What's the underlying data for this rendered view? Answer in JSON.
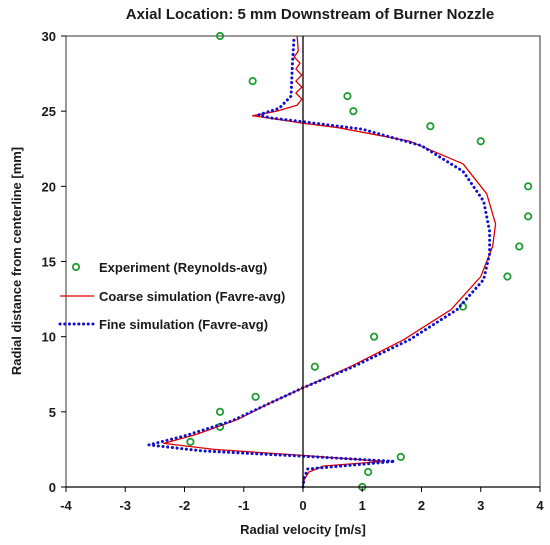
{
  "chart_data": {
    "type": "scatter",
    "title": "Axial Location: 5 mm Downstream of Burner Nozzle",
    "xlabel": "Radial velocity [m/s]",
    "ylabel": "Radial distance from centerline [mm]",
    "xlim": [
      -4,
      4
    ],
    "ylim": [
      0,
      30
    ],
    "xticks": [
      -4,
      -3,
      -2,
      -1,
      0,
      1,
      2,
      3,
      4
    ],
    "yticks": [
      0,
      5,
      10,
      15,
      20,
      25,
      30
    ],
    "grid": false,
    "legend_position": "middle-left",
    "series": [
      {
        "name": "Experiment (Reynolds-avg)",
        "kind": "scatter",
        "color": "#1e9e32",
        "points": [
          {
            "x": 1.0,
            "y": 0.0
          },
          {
            "x": 1.1,
            "y": 1.0
          },
          {
            "x": 1.65,
            "y": 2.0
          },
          {
            "x": -1.9,
            "y": 3.0
          },
          {
            "x": -1.4,
            "y": 4.0
          },
          {
            "x": -1.4,
            "y": 5.0
          },
          {
            "x": -0.8,
            "y": 6.0
          },
          {
            "x": 0.2,
            "y": 8.0
          },
          {
            "x": 1.2,
            "y": 10.0
          },
          {
            "x": 2.7,
            "y": 12.0
          },
          {
            "x": 3.45,
            "y": 14.0
          },
          {
            "x": 3.65,
            "y": 16.0
          },
          {
            "x": 3.8,
            "y": 18.0
          },
          {
            "x": 3.8,
            "y": 20.0
          },
          {
            "x": 3.0,
            "y": 23.0
          },
          {
            "x": 2.15,
            "y": 24.0
          },
          {
            "x": 0.85,
            "y": 25.0
          },
          {
            "x": 0.75,
            "y": 26.0
          },
          {
            "x": -0.85,
            "y": 27.0
          },
          {
            "x": -1.4,
            "y": 30.0
          }
        ]
      },
      {
        "name": "Coarse simulation (Favre-avg)",
        "kind": "line",
        "dash": "solid",
        "color": "#e00000",
        "points": [
          {
            "x": 0.0,
            "y": 0.0
          },
          {
            "x": 0.02,
            "y": 0.5
          },
          {
            "x": 0.1,
            "y": 1.0
          },
          {
            "x": 0.35,
            "y": 1.4
          },
          {
            "x": 1.35,
            "y": 1.7
          },
          {
            "x": 0.0,
            "y": 2.1
          },
          {
            "x": -1.5,
            "y": 2.5
          },
          {
            "x": -2.35,
            "y": 2.9
          },
          {
            "x": -1.8,
            "y": 3.5
          },
          {
            "x": -1.1,
            "y": 4.5
          },
          {
            "x": -0.6,
            "y": 5.5
          },
          {
            "x": 0.0,
            "y": 6.6
          },
          {
            "x": 0.8,
            "y": 8.0
          },
          {
            "x": 1.7,
            "y": 9.8
          },
          {
            "x": 2.5,
            "y": 11.8
          },
          {
            "x": 3.0,
            "y": 14.0
          },
          {
            "x": 3.2,
            "y": 16.0
          },
          {
            "x": 3.25,
            "y": 17.5
          },
          {
            "x": 3.1,
            "y": 19.5
          },
          {
            "x": 2.7,
            "y": 21.5
          },
          {
            "x": 1.8,
            "y": 23.0
          },
          {
            "x": 0.6,
            "y": 23.9
          },
          {
            "x": 0.0,
            "y": 24.2
          },
          {
            "x": -0.5,
            "y": 24.5
          },
          {
            "x": -0.85,
            "y": 24.7
          },
          {
            "x": -0.45,
            "y": 25.0
          },
          {
            "x": -0.1,
            "y": 25.4
          },
          {
            "x": -0.02,
            "y": 25.8
          },
          {
            "x": -0.12,
            "y": 26.2
          },
          {
            "x": -0.02,
            "y": 26.6
          },
          {
            "x": -0.12,
            "y": 27.0
          },
          {
            "x": -0.02,
            "y": 27.4
          },
          {
            "x": -0.12,
            "y": 27.8
          },
          {
            "x": -0.05,
            "y": 28.2
          },
          {
            "x": -0.15,
            "y": 28.6
          },
          {
            "x": -0.08,
            "y": 29.0
          },
          {
            "x": -0.1,
            "y": 30.0
          }
        ]
      },
      {
        "name": "Fine simulation (Favre-avg)",
        "kind": "line",
        "dash": "dotted",
        "color": "#1010cc",
        "points": [
          {
            "x": 0.0,
            "y": 0.0
          },
          {
            "x": 0.02,
            "y": 0.6
          },
          {
            "x": 0.08,
            "y": 1.2
          },
          {
            "x": 1.55,
            "y": 1.7
          },
          {
            "x": 0.0,
            "y": 2.05
          },
          {
            "x": -1.7,
            "y": 2.4
          },
          {
            "x": -2.6,
            "y": 2.8
          },
          {
            "x": -2.0,
            "y": 3.4
          },
          {
            "x": -1.2,
            "y": 4.4
          },
          {
            "x": -0.6,
            "y": 5.5
          },
          {
            "x": 0.0,
            "y": 6.6
          },
          {
            "x": 0.85,
            "y": 8.0
          },
          {
            "x": 1.8,
            "y": 9.8
          },
          {
            "x": 2.6,
            "y": 11.8
          },
          {
            "x": 3.05,
            "y": 13.8
          },
          {
            "x": 3.15,
            "y": 15.5
          },
          {
            "x": 3.15,
            "y": 17.0
          },
          {
            "x": 3.05,
            "y": 19.0
          },
          {
            "x": 2.7,
            "y": 21.0
          },
          {
            "x": 2.0,
            "y": 22.7
          },
          {
            "x": 1.0,
            "y": 23.8
          },
          {
            "x": 0.0,
            "y": 24.3
          },
          {
            "x": -0.55,
            "y": 24.55
          },
          {
            "x": -0.75,
            "y": 24.75
          },
          {
            "x": -0.4,
            "y": 25.2
          },
          {
            "x": -0.2,
            "y": 26.0
          },
          {
            "x": -0.18,
            "y": 28.0
          },
          {
            "x": -0.15,
            "y": 30.0
          }
        ]
      }
    ]
  }
}
